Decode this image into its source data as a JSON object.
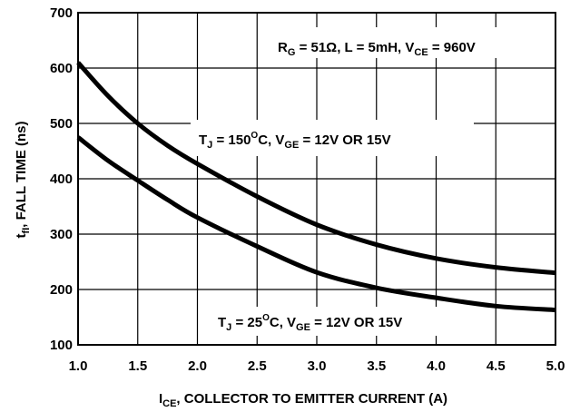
{
  "chart_data": {
    "type": "line",
    "title": "",
    "xlabel": {
      "main": "I",
      "sub": "CE",
      "rest": ", COLLECTOR TO EMITTER CURRENT (A)"
    },
    "ylabel": {
      "main": "t",
      "sub": "fI",
      "rest": ", FALL TIME (ns)"
    },
    "xlim": [
      1.0,
      5.0
    ],
    "ylim": [
      100,
      700
    ],
    "x_ticks": [
      1.0,
      1.5,
      2.0,
      2.5,
      3.0,
      3.5,
      4.0,
      4.5,
      5.0
    ],
    "x_tick_labels": [
      "1.0",
      "1.5",
      "2.0",
      "2.5",
      "3.0",
      "3.5",
      "4.0",
      "4.5",
      "5.0"
    ],
    "y_ticks": [
      100,
      200,
      300,
      400,
      500,
      600,
      700
    ],
    "y_tick_labels": [
      "100",
      "200",
      "300",
      "400",
      "500",
      "600",
      "700"
    ],
    "grid": true,
    "series": [
      {
        "x": [
          1.0,
          1.25,
          1.5,
          1.75,
          2.0,
          2.5,
          3.0,
          3.5,
          4.0,
          4.5,
          5.0
        ],
        "y": [
          610,
          550,
          500,
          460,
          427,
          368,
          317,
          281,
          256,
          240,
          230
        ]
      },
      {
        "x": [
          1.0,
          1.25,
          1.5,
          1.75,
          2.0,
          2.5,
          3.0,
          3.5,
          4.0,
          4.5,
          5.0
        ],
        "y": [
          475,
          433,
          397,
          362,
          330,
          278,
          231,
          203,
          185,
          170,
          163
        ]
      }
    ],
    "annotations": {
      "conditions": {
        "r": "R",
        "r_sub": "G",
        "mid": " = 51Ω, L = 5mH, V",
        "v_sub": "CE",
        "end": " = 960V"
      },
      "upper_curve": {
        "t": "T",
        "t_sub": "J",
        "mid": " = 150",
        "sup": "O",
        "c": "C, V",
        "v_sub": "GE",
        "end": " = 12V OR 15V"
      },
      "lower_curve": {
        "t": "T",
        "t_sub": "J",
        "mid": " = 25",
        "sup": "O",
        "c": "C, V",
        "v_sub": "GE",
        "end": " = 12V OR 15V"
      }
    }
  }
}
